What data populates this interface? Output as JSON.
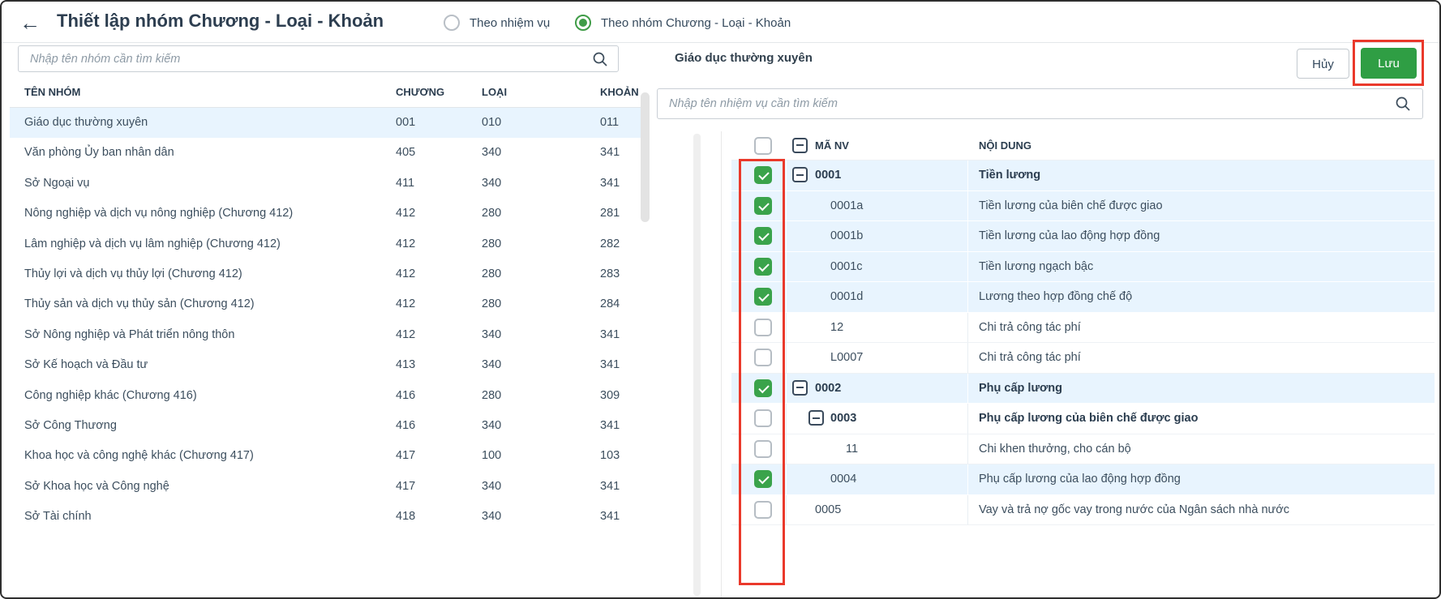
{
  "colors": {
    "accent_green": "#2f9e44",
    "checkbox_green": "#3aa34b",
    "annotation_red": "#ea392b",
    "row_highlight_blue": "#e8f4fe",
    "text_dark": "#2d3e50"
  },
  "header": {
    "back_glyph": "←",
    "title": "Thiết lập nhóm Chương - Loại - Khoản",
    "radio_options": [
      {
        "label": "Theo nhiệm vụ",
        "selected": false
      },
      {
        "label": "Theo nhóm Chương - Loại - Khoản",
        "selected": true
      }
    ]
  },
  "left_panel": {
    "search_placeholder": "Nhập tên nhóm cần tìm kiếm",
    "columns": [
      "TÊN NHÓM",
      "CHƯƠNG",
      "LOẠI",
      "KHOẢN"
    ],
    "rows": [
      {
        "name": "Giáo dục thường xuyên",
        "chuong": "001",
        "loai": "010",
        "khoan": "011",
        "selected": true
      },
      {
        "name": "Văn phòng Ủy ban nhân dân",
        "chuong": "405",
        "loai": "340",
        "khoan": "341",
        "selected": false
      },
      {
        "name": "Sở Ngoại vụ",
        "chuong": "411",
        "loai": "340",
        "khoan": "341",
        "selected": false
      },
      {
        "name": "Nông nghiệp và dịch vụ nông nghiệp (Chương 412)",
        "chuong": "412",
        "loai": "280",
        "khoan": "281",
        "selected": false
      },
      {
        "name": "Lâm nghiệp và dịch vụ lâm nghiệp (Chương 412)",
        "chuong": "412",
        "loai": "280",
        "khoan": "282",
        "selected": false
      },
      {
        "name": "Thủy lợi và dịch vụ thủy lợi (Chương 412)",
        "chuong": "412",
        "loai": "280",
        "khoan": "283",
        "selected": false
      },
      {
        "name": "Thủy sản và dịch vụ thủy sản (Chương 412)",
        "chuong": "412",
        "loai": "280",
        "khoan": "284",
        "selected": false
      },
      {
        "name": "Sở Nông nghiệp và Phát triển nông thôn",
        "chuong": "412",
        "loai": "340",
        "khoan": "341",
        "selected": false
      },
      {
        "name": "Sở Kế hoạch và Đầu tư",
        "chuong": "413",
        "loai": "340",
        "khoan": "341",
        "selected": false
      },
      {
        "name": "Công nghiệp khác (Chương 416)",
        "chuong": "416",
        "loai": "280",
        "khoan": "309",
        "selected": false
      },
      {
        "name": "Sở Công Thương",
        "chuong": "416",
        "loai": "340",
        "khoan": "341",
        "selected": false
      },
      {
        "name": "Khoa học và công nghệ khác (Chương 417)",
        "chuong": "417",
        "loai": "100",
        "khoan": "103",
        "selected": false
      },
      {
        "name": "Sở Khoa học và Công nghệ",
        "chuong": "417",
        "loai": "340",
        "khoan": "341",
        "selected": false
      },
      {
        "name": "Sở Tài chính",
        "chuong": "418",
        "loai": "340",
        "khoan": "341",
        "selected": false
      }
    ]
  },
  "right_panel": {
    "title": "Giáo dục thường xuyên",
    "cancel_label": "Hủy",
    "save_label": "Lưu",
    "search_placeholder": "Nhập tên nhiệm vụ cần tìm kiếm",
    "columns": [
      "MÃ NV",
      "NỘI DUNG"
    ],
    "rows": [
      {
        "code": "0001",
        "content": "Tiền lương",
        "checked": true,
        "expander": true,
        "level": 0,
        "bold": true,
        "highlighted": true
      },
      {
        "code": "0001a",
        "content": "Tiền lương của biên chế được giao",
        "checked": true,
        "expander": false,
        "level": 1,
        "bold": false,
        "highlighted": true
      },
      {
        "code": "0001b",
        "content": "Tiền lương của lao động hợp đồng",
        "checked": true,
        "expander": false,
        "level": 1,
        "bold": false,
        "highlighted": true
      },
      {
        "code": "0001c",
        "content": "Tiền lương ngạch bậc",
        "checked": true,
        "expander": false,
        "level": 1,
        "bold": false,
        "highlighted": true
      },
      {
        "code": "0001d",
        "content": "Lương theo hợp đồng chế độ",
        "checked": true,
        "expander": false,
        "level": 1,
        "bold": false,
        "highlighted": true
      },
      {
        "code": "12",
        "content": "Chi trả công tác phí",
        "checked": false,
        "expander": false,
        "level": 1,
        "bold": false,
        "highlighted": false
      },
      {
        "code": "L0007",
        "content": "Chi trả công tác phí",
        "checked": false,
        "expander": false,
        "level": 1,
        "bold": false,
        "highlighted": false
      },
      {
        "code": "0002",
        "content": "Phụ cấp lương",
        "checked": true,
        "expander": true,
        "level": 0,
        "bold": true,
        "highlighted": true
      },
      {
        "code": "0003",
        "content": "Phụ cấp lương của biên chế được giao",
        "checked": false,
        "expander": true,
        "level": 1,
        "bold": true,
        "highlighted": false
      },
      {
        "code": "11",
        "content": "Chi khen thưởng, cho cán bộ",
        "checked": false,
        "expander": false,
        "level": 2,
        "bold": false,
        "highlighted": false
      },
      {
        "code": "0004",
        "content": "Phụ cấp lương của lao động hợp đồng",
        "checked": true,
        "expander": false,
        "level": 1,
        "bold": false,
        "highlighted": true
      },
      {
        "code": "0005",
        "content": "Vay và trả nợ gốc vay trong nước của Ngân sách nhà nước",
        "checked": false,
        "expander": false,
        "level": 0,
        "bold": false,
        "highlighted": false
      }
    ]
  }
}
